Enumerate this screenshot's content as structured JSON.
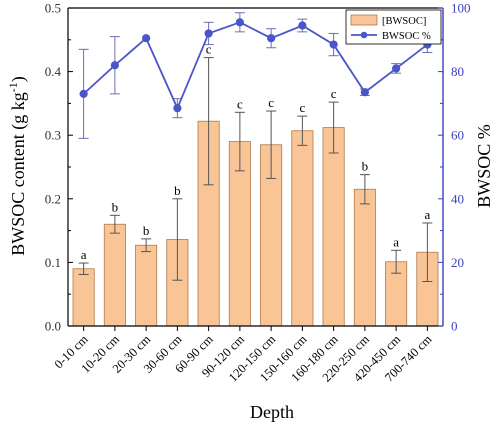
{
  "chart_data": {
    "type": "bar",
    "categories": [
      "0-10 cm",
      "10-20 cm",
      "20-30 cm",
      "30-60 cm",
      "60-90 cm",
      "90-120 cm",
      "120-150 cm",
      "150-160 cm",
      "160-180 cm",
      "220-250 cm",
      "420-450 cm",
      "700-740 cm"
    ],
    "xlabel": "Depth",
    "ylabel_left": "BWSOC content (g kg",
    "ylabel_left_sup": "-1",
    "ylabel_left_close": ")",
    "ylabel_right": "BWSOC %",
    "ylim_left": [
      0,
      0.5
    ],
    "yticks_left": [
      "0.0",
      "0.1",
      "0.2",
      "0.3",
      "0.4",
      "0.5"
    ],
    "ylim_right": [
      0,
      100
    ],
    "yticks_right": [
      "0",
      "20",
      "40",
      "60",
      "80",
      "100"
    ],
    "grid": false,
    "legend_position": "top-right",
    "series": [
      {
        "name": "[BWSOC]",
        "kind": "bar",
        "axis": "left",
        "color": "#f9c597",
        "edge_color": "#b07a4a",
        "values": [
          0.09,
          0.16,
          0.127,
          0.136,
          0.322,
          0.29,
          0.285,
          0.307,
          0.312,
          0.215,
          0.101,
          0.116
        ],
        "errors": [
          0.009,
          0.014,
          0.01,
          0.064,
          0.1,
          0.046,
          0.053,
          0.023,
          0.04,
          0.023,
          0.018,
          0.046
        ],
        "letters": [
          "a",
          "b",
          "b",
          "b",
          "c",
          "c",
          "c",
          "c",
          "c",
          "b",
          "a",
          "a"
        ]
      },
      {
        "name": "BWSOC %",
        "kind": "line",
        "axis": "right",
        "color": "#4a55c9",
        "values": [
          73,
          82,
          90.5,
          68.5,
          92,
          95.5,
          90.5,
          94.5,
          88.5,
          73.5,
          81,
          88.5
        ],
        "errors": [
          14,
          9,
          0,
          3,
          3.5,
          3,
          3,
          2,
          3.5,
          1,
          1.5,
          2.5
        ]
      }
    ]
  }
}
